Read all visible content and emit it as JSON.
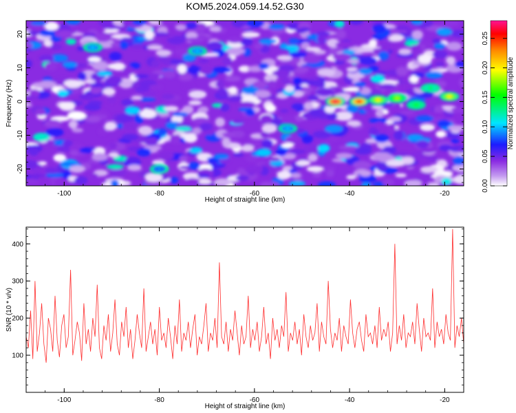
{
  "title": "KOM5.2024.059.14.52.G30",
  "chart_data": [
    {
      "type": "heatmap",
      "xlabel": "Height of straight line (km)",
      "ylabel": "Frequency (Hz)",
      "xlim": [
        -108,
        -16
      ],
      "ylim": [
        -25,
        24
      ],
      "xticks": [
        -100,
        -80,
        -60,
        -40,
        -20
      ],
      "yticks": [
        -20,
        -10,
        0,
        10,
        20
      ],
      "colorbar": {
        "label": "Normalized spectral amplitude",
        "range": [
          0,
          0.28
        ],
        "ticks": [
          "0.00",
          "0.05",
          "0.10",
          "0.15",
          "0.20",
          "0.25"
        ],
        "colormap": [
          "#ffffff",
          "#8a2be2",
          "#0000ff",
          "#00e5ff",
          "#00ff00",
          "#ffff00",
          "#ff8800",
          "#ff0000",
          "#ff1493"
        ]
      },
      "background_level": 0.05,
      "features": [
        {
          "x": -43,
          "y": 0,
          "value": 0.27
        },
        {
          "x": -38,
          "y": 0,
          "value": 0.25
        },
        {
          "x": -34,
          "y": 0.5,
          "value": 0.2
        },
        {
          "x": -30,
          "y": 1,
          "value": 0.18
        },
        {
          "x": -26,
          "y": -1,
          "value": 0.15
        },
        {
          "x": -23,
          "y": 4,
          "value": 0.14
        },
        {
          "x": -19,
          "y": 1.5,
          "value": 0.2
        },
        {
          "x": -94,
          "y": 16,
          "value": 0.1
        },
        {
          "x": -72,
          "y": 15,
          "value": 0.1
        },
        {
          "x": -53,
          "y": -8,
          "value": 0.1
        },
        {
          "x": -80,
          "y": -20,
          "value": 0.09
        }
      ]
    },
    {
      "type": "line",
      "xlabel": "Height of straight line (km)",
      "ylabel": "SNR (10 * v/v)",
      "xlim": [
        -108,
        -16
      ],
      "ylim": [
        0,
        445
      ],
      "xticks": [
        -100,
        -80,
        -60,
        -40,
        -20
      ],
      "yticks": [
        100,
        200,
        300,
        400
      ],
      "color": "#ff2a2a",
      "series": [
        {
          "values": [
            150,
            120,
            220,
            90,
            300,
            110,
            160,
            240,
            130,
            80,
            200,
            170,
            110,
            260,
            140,
            95,
            180,
            210,
            120,
            150,
            330,
            100,
            140,
            190,
            160,
            85,
            240,
            130,
            170,
            110,
            200,
            150,
            290,
            120,
            90,
            180,
            140,
            210,
            110,
            160,
            250,
            130,
            100,
            190,
            150,
            230,
            120,
            170,
            90,
            140,
            210,
            160,
            120,
            280,
            110,
            150,
            190,
            130,
            170,
            100,
            230,
            140,
            160,
            120,
            200,
            150,
            90,
            180,
            130,
            250,
            110,
            160,
            140,
            190,
            120,
            170,
            210,
            100,
            150,
            130,
            180,
            240,
            110,
            160,
            140,
            200,
            120,
            350,
            150,
            130,
            190,
            110,
            170,
            140,
            220,
            160,
            100,
            180,
            130,
            150,
            260,
            120,
            170,
            140,
            190,
            110,
            150,
            230,
            130,
            160,
            90,
            200,
            140,
            170,
            120,
            180,
            150,
            270,
            110,
            160,
            140,
            190,
            130,
            170,
            100,
            210,
            150,
            120,
            180,
            140,
            160,
            240,
            110,
            190,
            150,
            130,
            300,
            170,
            120,
            160,
            140,
            200,
            110,
            180,
            150,
            130,
            250,
            160,
            120,
            170,
            190,
            140,
            110,
            210,
            150,
            160,
            130,
            180,
            120,
            230,
            140,
            170,
            150,
            190,
            110,
            160,
            400,
            130,
            180,
            140,
            210,
            120,
            160,
            150,
            190,
            130,
            240,
            170,
            110,
            200,
            150,
            160,
            140,
            280,
            120,
            190,
            150,
            170,
            130,
            210,
            160,
            140,
            440,
            120,
            180,
            150,
            200,
            130
          ]
        }
      ]
    }
  ]
}
